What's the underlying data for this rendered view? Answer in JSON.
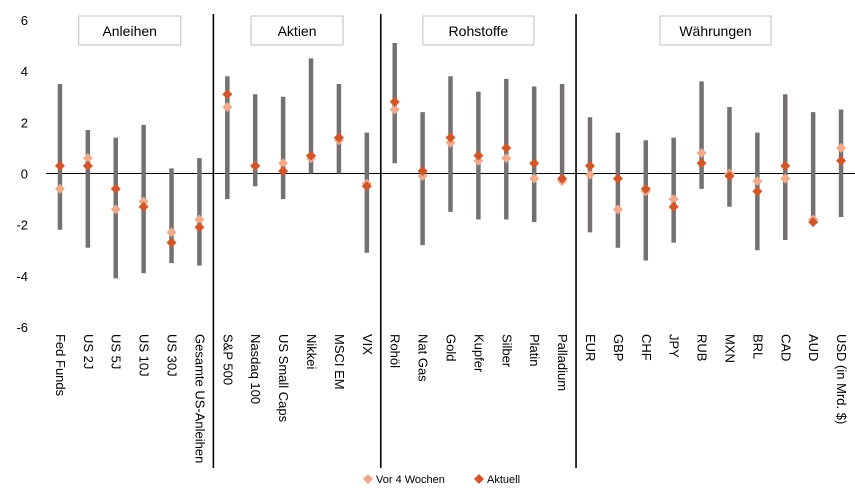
{
  "chart_data": {
    "type": "range-dot",
    "ylim": [
      -6,
      6
    ],
    "yticks": [
      "6",
      "4",
      "2",
      "0",
      "-2",
      "-4",
      "-6"
    ],
    "ytick_values": [
      6,
      4,
      2,
      0,
      -2,
      -4,
      -6
    ],
    "groups": [
      {
        "label": "Anleihen",
        "start": 0,
        "end": 5
      },
      {
        "label": "Aktien",
        "start": 6,
        "end": 11
      },
      {
        "label": "Rohstoffe",
        "start": 12,
        "end": 18
      },
      {
        "label": "Währungen",
        "start": 19,
        "end": 28
      }
    ],
    "categories": [
      "Fed Funds",
      "US 2J",
      "US 5J",
      "US 10J",
      "US 30J",
      "Gesamte US-Anleihen",
      "S&P 500",
      "Nasdaq 100",
      "US Small Caps",
      "Nikkei",
      "MSCI EM",
      "VIX",
      "Rohöl",
      "Nat Gas",
      "Gold",
      "Kupfer",
      "Silber",
      "Platin",
      "Palladium",
      "EUR",
      "GBP",
      "CHF",
      "JPY",
      "RUB",
      "MXN",
      "BRL",
      "CAD",
      "AUD",
      "USD (in Mrd. $)"
    ],
    "range_low": [
      -2.2,
      -2.9,
      -4.1,
      -3.9,
      -3.5,
      -3.6,
      -1.0,
      -0.5,
      -1.0,
      0.0,
      0.0,
      -3.1,
      0.4,
      -2.8,
      -1.5,
      -1.8,
      -1.8,
      -1.9,
      -0.2,
      -2.3,
      -2.9,
      -3.4,
      -2.7,
      -0.6,
      -1.3,
      -3.0,
      -2.6,
      -1.8,
      -1.7
    ],
    "range_high": [
      3.5,
      1.7,
      1.4,
      1.9,
      0.2,
      0.6,
      3.8,
      3.1,
      3.0,
      4.5,
      3.5,
      1.6,
      5.1,
      2.4,
      3.8,
      3.2,
      3.7,
      3.4,
      3.5,
      2.2,
      1.6,
      1.3,
      1.4,
      3.6,
      2.6,
      1.6,
      3.1,
      2.4,
      2.5
    ],
    "series": [
      {
        "name": "Vor 4 Wochen",
        "color": "#F0A989",
        "values": [
          -0.6,
          0.6,
          -1.4,
          -1.1,
          -2.3,
          -1.8,
          2.6,
          0.3,
          0.4,
          0.6,
          1.3,
          -0.4,
          2.5,
          -0.1,
          1.2,
          0.5,
          0.6,
          -0.2,
          -0.3,
          -0.05,
          -1.4,
          -0.7,
          -1.0,
          0.8,
          0.0,
          -0.3,
          -0.2,
          -1.8,
          1.0
        ]
      },
      {
        "name": "Aktuell",
        "color": "#D2562A",
        "values": [
          0.3,
          0.3,
          -0.6,
          -1.3,
          -2.7,
          -2.1,
          3.1,
          0.3,
          0.1,
          0.7,
          1.4,
          -0.5,
          2.8,
          0.1,
          1.4,
          0.7,
          1.0,
          0.4,
          -0.2,
          0.3,
          -0.2,
          -0.6,
          -1.3,
          0.4,
          -0.1,
          -0.7,
          0.3,
          -1.9,
          0.5
        ]
      }
    ],
    "range_color": "#767171",
    "legend_position": "bottom-center",
    "grid": false
  }
}
